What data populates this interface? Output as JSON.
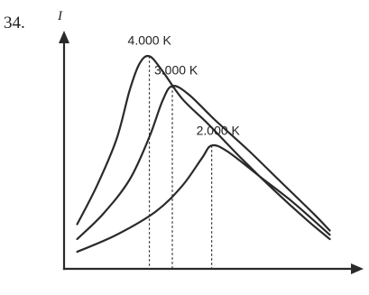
{
  "question": {
    "number": "34."
  },
  "chart_data": {
    "type": "line",
    "ylabel": "I",
    "xlabel": "",
    "colors": {
      "curve": "#2a2a2a",
      "axis": "#2a2a2a",
      "dashed_line": "#333333"
    },
    "grid": false,
    "series": [
      {
        "name": "4.000 K",
        "peak": {
          "x": 1.3,
          "y": 10.0
        },
        "values": [
          [
            0.2,
            2.1
          ],
          [
            0.5,
            3.9
          ],
          [
            0.8,
            6.1
          ],
          [
            1.0,
            8.4
          ],
          [
            1.15,
            9.65
          ],
          [
            1.3,
            10.0
          ],
          [
            1.5,
            9.3
          ],
          [
            1.8,
            8.0
          ],
          [
            2.2,
            6.8
          ],
          [
            2.7,
            5.2
          ],
          [
            3.2,
            3.7
          ],
          [
            3.7,
            2.3
          ],
          [
            4.05,
            1.4
          ]
        ]
      },
      {
        "name": "3.000 K",
        "peak": {
          "x": 1.65,
          "y": 8.6
        },
        "values": [
          [
            0.2,
            1.4
          ],
          [
            0.6,
            2.6
          ],
          [
            1.0,
            4.2
          ],
          [
            1.3,
            6.2
          ],
          [
            1.5,
            7.9
          ],
          [
            1.65,
            8.6
          ],
          [
            1.9,
            8.2
          ],
          [
            2.3,
            7.0
          ],
          [
            2.8,
            5.6
          ],
          [
            3.3,
            4.1
          ],
          [
            3.8,
            2.6
          ],
          [
            4.05,
            1.8
          ]
        ]
      },
      {
        "name": "2.000 K",
        "peak": {
          "x": 2.25,
          "y": 5.8
        },
        "values": [
          [
            0.2,
            0.8
          ],
          [
            0.8,
            1.6
          ],
          [
            1.4,
            2.7
          ],
          [
            1.8,
            3.9
          ],
          [
            2.1,
            5.2
          ],
          [
            2.25,
            5.8
          ],
          [
            2.5,
            5.5
          ],
          [
            3.0,
            4.3
          ],
          [
            3.5,
            3.1
          ],
          [
            4.05,
            1.6
          ]
        ]
      }
    ],
    "xlim": [
      0,
      4.4
    ],
    "ylim": [
      0,
      11.2
    ]
  }
}
